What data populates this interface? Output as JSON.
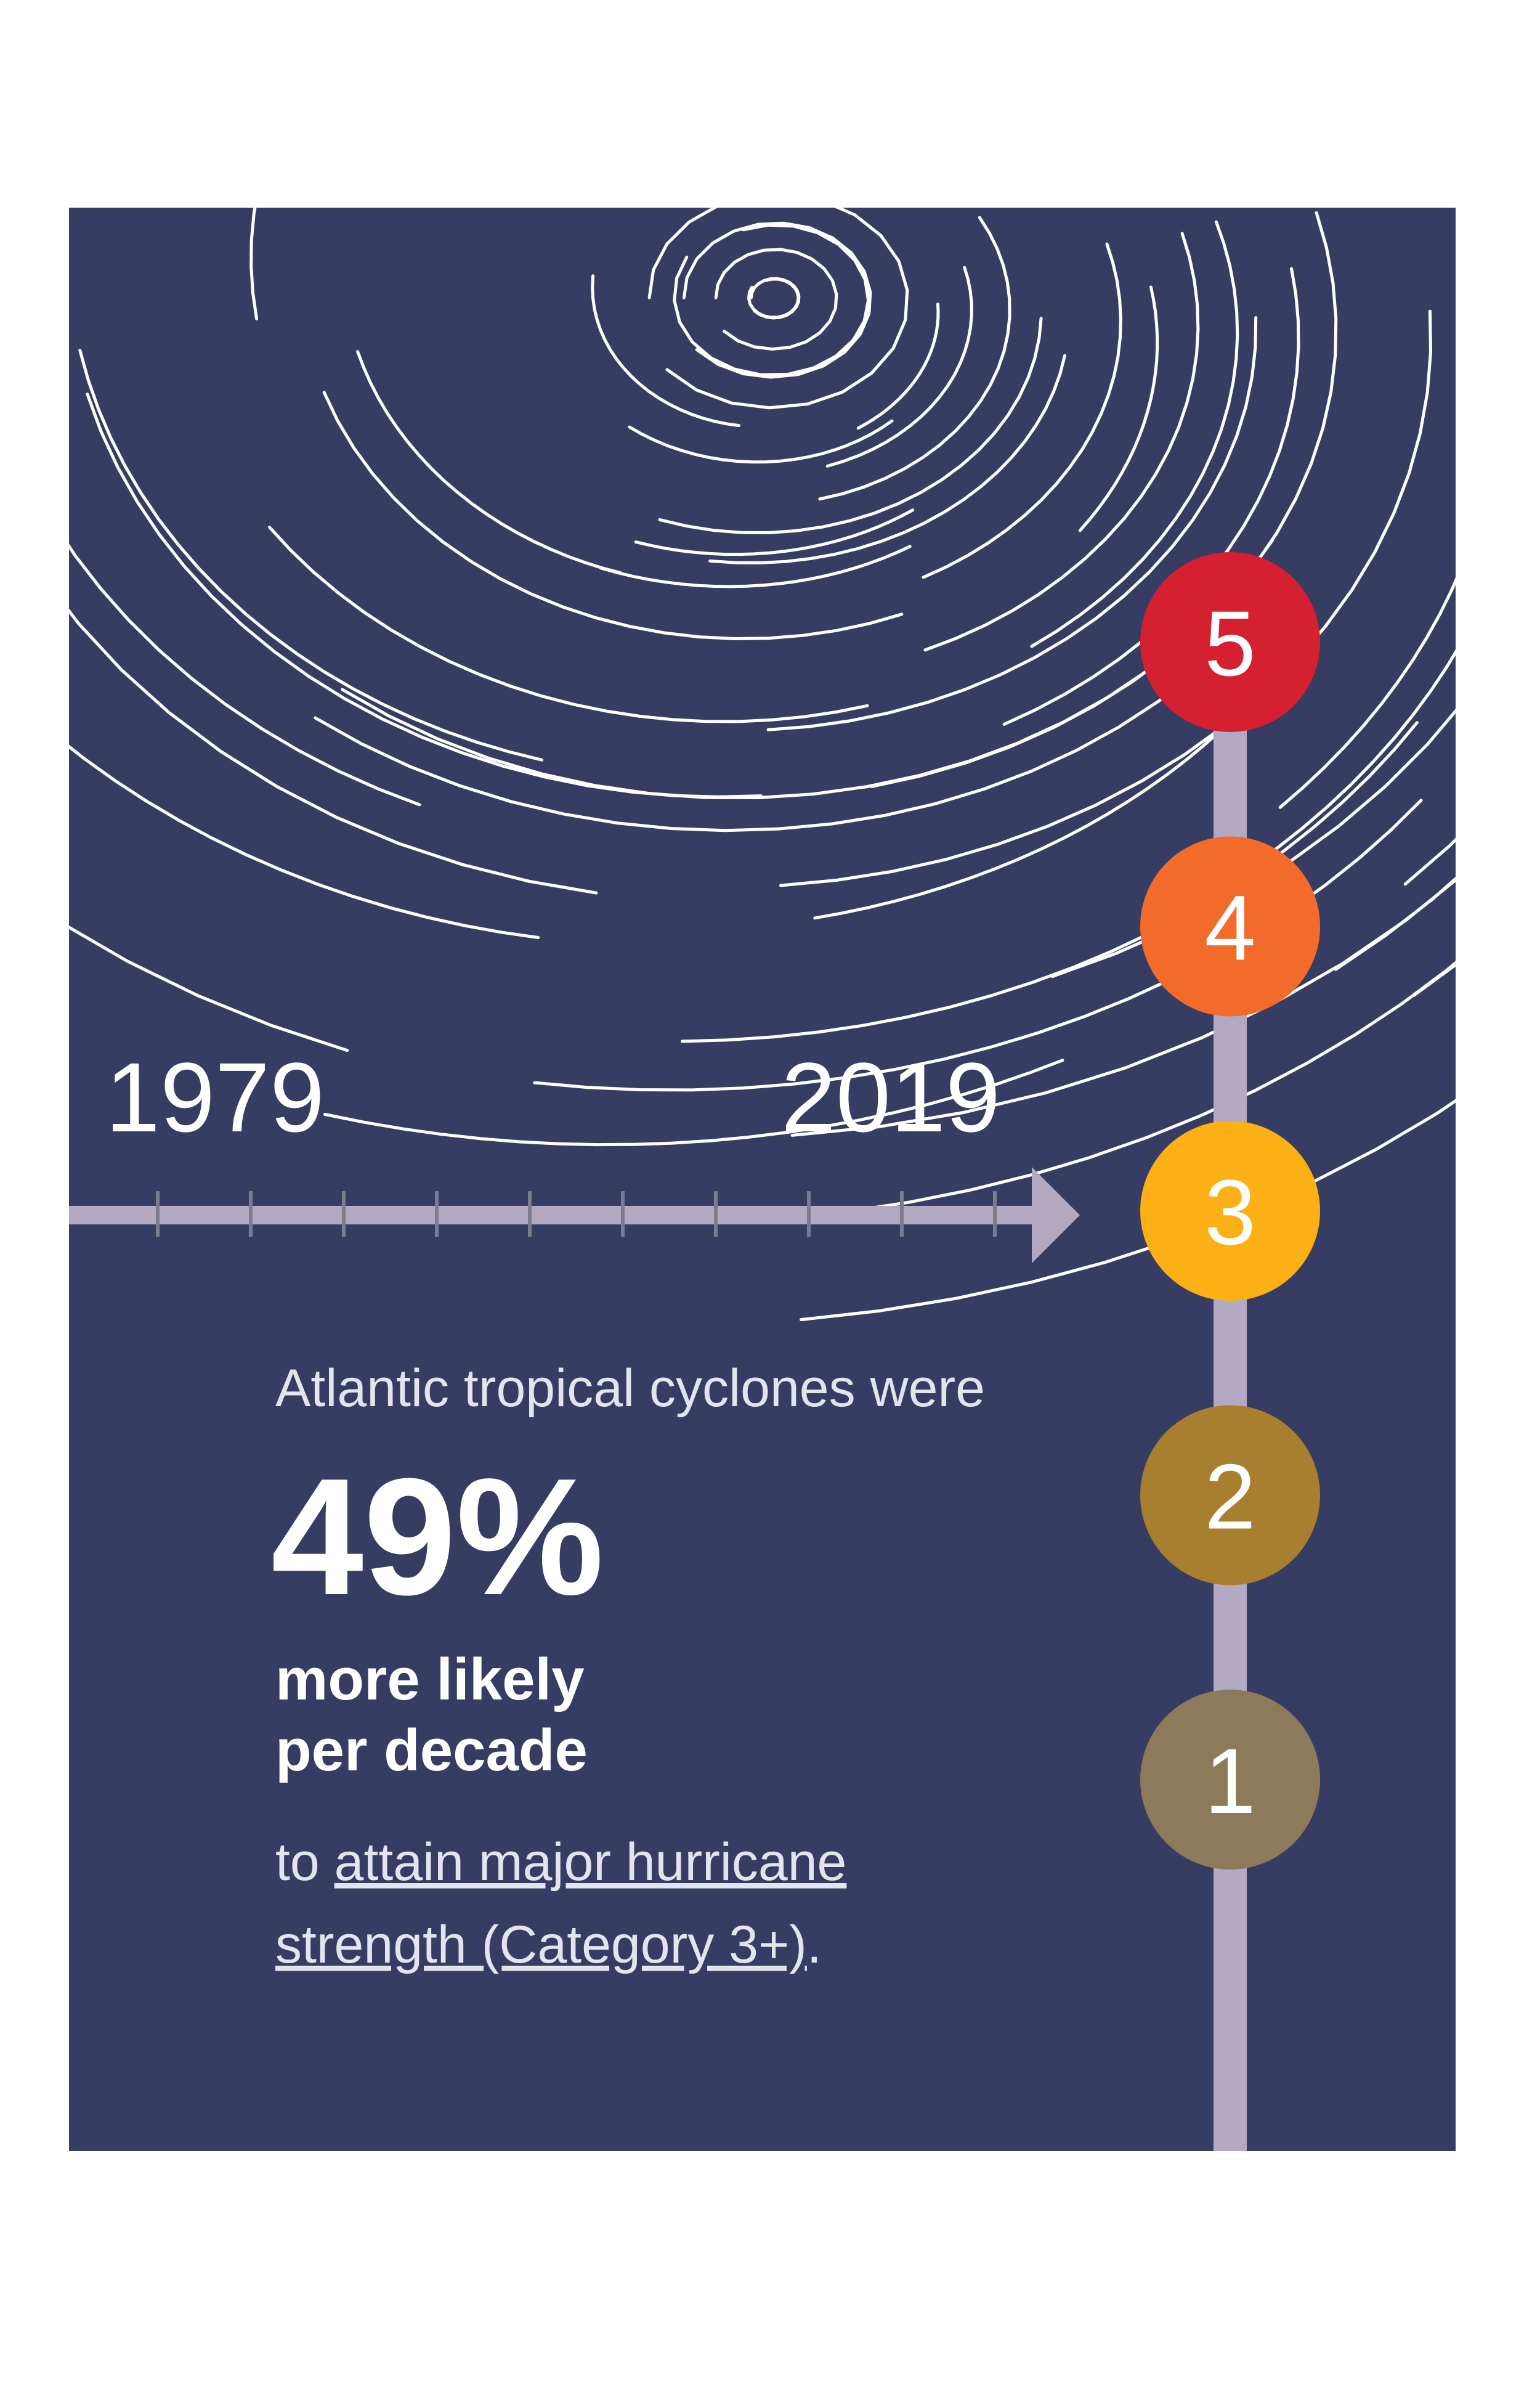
{
  "timeline": {
    "start": "1979",
    "end": "2019"
  },
  "categories": [
    {
      "label": "5",
      "color": "#d42030"
    },
    {
      "label": "4",
      "color": "#f26b2a"
    },
    {
      "label": "3",
      "color": "#fbb116"
    },
    {
      "label": "2",
      "color": "#a87f2f"
    },
    {
      "label": "1",
      "color": "#8d7a5a"
    }
  ],
  "text": {
    "intro": "Atlantic tropical cyclones were",
    "stat": "49%",
    "stat_lines": [
      "more likely",
      "per decade"
    ],
    "closing": [
      {
        "prefix": "to ",
        "underlined": "attain major hurricane",
        "suffix": ""
      },
      {
        "prefix": "",
        "underlined": "strength (Category 3+)",
        "suffix": "."
      }
    ]
  }
}
